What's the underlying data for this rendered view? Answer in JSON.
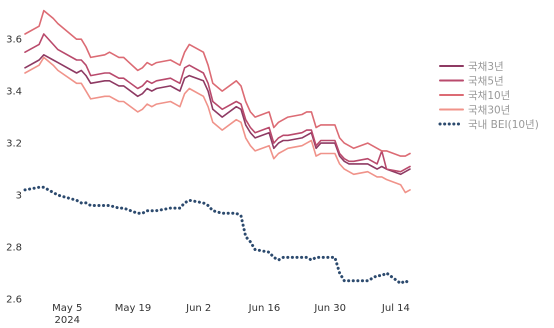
{
  "chart_data": {
    "type": "line",
    "title": "",
    "xlabel": "",
    "ylabel": "",
    "ylim": [
      2.6,
      3.72
    ],
    "y_ticks": [
      "2.6",
      "2.8",
      "3",
      "3.2",
      "3.4",
      "3.6"
    ],
    "x_ticks": [
      {
        "date": "2024-05-05",
        "label": "May 5",
        "sublabel": "2024"
      },
      {
        "date": "2024-05-19",
        "label": "May 19",
        "sublabel": ""
      },
      {
        "date": "2024-06-02",
        "label": "Jun 2",
        "sublabel": ""
      },
      {
        "date": "2024-06-16",
        "label": "Jun 16",
        "sublabel": ""
      },
      {
        "date": "2024-06-30",
        "label": "Jun 30",
        "sublabel": ""
      },
      {
        "date": "2024-07-14",
        "label": "Jul 14",
        "sublabel": ""
      }
    ],
    "x": [
      "2024-04-26",
      "2024-04-29",
      "2024-04-30",
      "2024-05-02",
      "2024-05-03",
      "2024-05-07",
      "2024-05-08",
      "2024-05-09",
      "2024-05-10",
      "2024-05-13",
      "2024-05-14",
      "2024-05-16",
      "2024-05-17",
      "2024-05-20",
      "2024-05-21",
      "2024-05-22",
      "2024-05-23",
      "2024-05-24",
      "2024-05-27",
      "2024-05-28",
      "2024-05-29",
      "2024-05-30",
      "2024-05-31",
      "2024-06-03",
      "2024-06-04",
      "2024-06-05",
      "2024-06-07",
      "2024-06-10",
      "2024-06-11",
      "2024-06-12",
      "2024-06-13",
      "2024-06-14",
      "2024-06-17",
      "2024-06-18",
      "2024-06-19",
      "2024-06-20",
      "2024-06-21",
      "2024-06-24",
      "2024-06-25",
      "2024-06-26",
      "2024-06-27",
      "2024-06-28",
      "2024-07-01",
      "2024-07-02",
      "2024-07-03",
      "2024-07-04",
      "2024-07-05",
      "2024-07-08",
      "2024-07-09",
      "2024-07-10",
      "2024-07-11",
      "2024-07-12",
      "2024-07-15",
      "2024-07-16",
      "2024-07-17"
    ],
    "series": [
      {
        "name": "국채3년",
        "color": "#8e3a63",
        "style": "solid",
        "values": [
          3.49,
          3.52,
          3.54,
          3.52,
          3.51,
          3.47,
          3.48,
          3.46,
          3.43,
          3.44,
          3.44,
          3.42,
          3.42,
          3.38,
          3.39,
          3.41,
          3.4,
          3.41,
          3.42,
          3.41,
          3.4,
          3.45,
          3.46,
          3.44,
          3.4,
          3.33,
          3.3,
          3.34,
          3.33,
          3.27,
          3.24,
          3.22,
          3.24,
          3.18,
          3.2,
          3.21,
          3.21,
          3.22,
          3.23,
          3.24,
          3.18,
          3.2,
          3.2,
          3.15,
          3.13,
          3.12,
          3.12,
          3.12,
          3.11,
          3.1,
          3.11,
          3.1,
          3.08,
          3.09,
          3.1
        ]
      },
      {
        "name": "국채5년",
        "color": "#b94a6c",
        "style": "solid",
        "values": [
          3.55,
          3.58,
          3.62,
          3.58,
          3.56,
          3.52,
          3.52,
          3.5,
          3.46,
          3.47,
          3.47,
          3.45,
          3.45,
          3.41,
          3.42,
          3.44,
          3.43,
          3.44,
          3.45,
          3.44,
          3.43,
          3.49,
          3.5,
          3.47,
          3.43,
          3.36,
          3.33,
          3.36,
          3.35,
          3.29,
          3.26,
          3.24,
          3.26,
          3.2,
          3.22,
          3.23,
          3.23,
          3.24,
          3.25,
          3.25,
          3.19,
          3.21,
          3.21,
          3.16,
          3.14,
          3.13,
          3.13,
          3.14,
          3.13,
          3.12,
          3.17,
          3.1,
          3.09,
          3.1,
          3.11
        ]
      },
      {
        "name": "국채10년",
        "color": "#dc6b74",
        "style": "solid",
        "values": [
          3.62,
          3.65,
          3.71,
          3.68,
          3.66,
          3.6,
          3.6,
          3.57,
          3.53,
          3.54,
          3.55,
          3.53,
          3.53,
          3.48,
          3.49,
          3.51,
          3.5,
          3.51,
          3.52,
          3.51,
          3.5,
          3.55,
          3.58,
          3.55,
          3.5,
          3.43,
          3.4,
          3.44,
          3.42,
          3.36,
          3.32,
          3.3,
          3.32,
          3.26,
          3.28,
          3.29,
          3.3,
          3.31,
          3.32,
          3.32,
          3.26,
          3.27,
          3.27,
          3.22,
          3.2,
          3.19,
          3.18,
          3.2,
          3.19,
          3.18,
          3.17,
          3.17,
          3.15,
          3.15,
          3.16
        ]
      },
      {
        "name": "국채30년",
        "color": "#f0938a",
        "style": "solid",
        "values": [
          3.47,
          3.5,
          3.53,
          3.5,
          3.48,
          3.43,
          3.43,
          3.4,
          3.37,
          3.38,
          3.38,
          3.36,
          3.36,
          3.32,
          3.33,
          3.35,
          3.34,
          3.35,
          3.36,
          3.35,
          3.34,
          3.39,
          3.41,
          3.38,
          3.34,
          3.28,
          3.25,
          3.29,
          3.28,
          3.22,
          3.19,
          3.17,
          3.19,
          3.14,
          3.16,
          3.17,
          3.18,
          3.19,
          3.2,
          3.21,
          3.15,
          3.16,
          3.16,
          3.12,
          3.1,
          3.09,
          3.08,
          3.09,
          3.08,
          3.07,
          3.07,
          3.06,
          3.04,
          3.01,
          3.02
        ]
      },
      {
        "name": "국내 BEI(10년)",
        "color": "#2c4a6e",
        "style": "dotted",
        "values": [
          3.02,
          3.03,
          3.03,
          3.01,
          3.0,
          2.98,
          2.97,
          2.97,
          2.96,
          2.96,
          2.96,
          2.95,
          2.95,
          2.93,
          2.93,
          2.94,
          2.94,
          2.94,
          2.95,
          2.95,
          2.95,
          2.97,
          2.98,
          2.97,
          2.96,
          2.94,
          2.93,
          2.93,
          2.92,
          2.84,
          2.82,
          2.79,
          2.78,
          2.76,
          2.75,
          2.76,
          2.76,
          2.76,
          2.76,
          2.75,
          2.76,
          2.76,
          2.76,
          2.7,
          2.67,
          2.67,
          2.67,
          2.67,
          2.68,
          2.69,
          2.69,
          2.7,
          2.66,
          2.67,
          2.66
        ]
      }
    ],
    "legend_position": "right",
    "grid": false
  }
}
